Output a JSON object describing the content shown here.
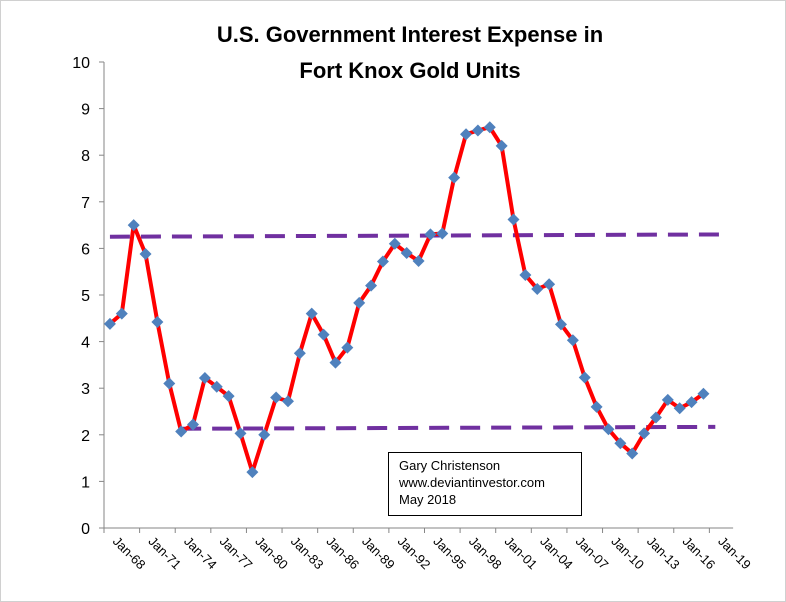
{
  "chart_data": {
    "type": "line",
    "title": [
      "U.S. Government Interest Expense in",
      "Fort Knox Gold Units"
    ],
    "xlabel": "",
    "ylabel": "",
    "ylim": [
      0,
      10
    ],
    "yticks": [
      0,
      1,
      2,
      3,
      4,
      5,
      6,
      7,
      8,
      9,
      10
    ],
    "grid": false,
    "x_tick_labels": [
      "Jan-68",
      "Jan-71",
      "Jan-74",
      "Jan-77",
      "Jan-80",
      "Jan-83",
      "Jan-86",
      "Jan-89",
      "Jan-92",
      "Jan-95",
      "Jan-98",
      "Jan-01",
      "Jan-04",
      "Jan-07",
      "Jan-10",
      "Jan-13",
      "Jan-16",
      "Jan-19"
    ],
    "x": [
      1968,
      1969,
      1970,
      1971,
      1972,
      1973,
      1974,
      1975,
      1976,
      1977,
      1978,
      1979,
      1980,
      1981,
      1982,
      1983,
      1984,
      1985,
      1986,
      1987,
      1988,
      1989,
      1990,
      1991,
      1992,
      1993,
      1994,
      1995,
      1996,
      1997,
      1998,
      1999,
      2000,
      2001,
      2002,
      2003,
      2004,
      2005,
      2006,
      2007,
      2008,
      2009,
      2010,
      2011,
      2012,
      2013,
      2014,
      2015,
      2016,
      2017,
      2018
    ],
    "series": [
      {
        "values": [
          4.38,
          4.6,
          6.5,
          5.88,
          4.42,
          3.1,
          2.07,
          2.22,
          3.22,
          3.03,
          2.83,
          2.03,
          1.2,
          2.0,
          2.8,
          2.72,
          3.75,
          4.6,
          4.15,
          3.55,
          3.87,
          4.83,
          5.2,
          5.72,
          6.1,
          5.9,
          5.73,
          6.3,
          6.32,
          7.52,
          8.45,
          8.53,
          8.6,
          8.2,
          6.62,
          5.43,
          5.13,
          5.23,
          4.37,
          4.03,
          3.23,
          2.6,
          2.12,
          1.82,
          1.6,
          2.03,
          2.37,
          2.75,
          2.57,
          2.7,
          2.88
        ],
        "line_color": "#ff0000",
        "marker_color": "#4f81bd",
        "marker": "diamond"
      }
    ],
    "reference_lines": [
      {
        "from": [
          1968,
          6.25
        ],
        "to": [
          2020,
          6.3
        ],
        "style": "dashed",
        "color": "#7030a0"
      },
      {
        "from": [
          1974,
          2.13
        ],
        "to": [
          2019,
          2.17
        ],
        "style": "dashed",
        "color": "#7030a0"
      }
    ]
  },
  "annotation": {
    "lines": [
      "Gary Christenson",
      "www.deviantinvestor.com",
      "May 2018"
    ]
  }
}
